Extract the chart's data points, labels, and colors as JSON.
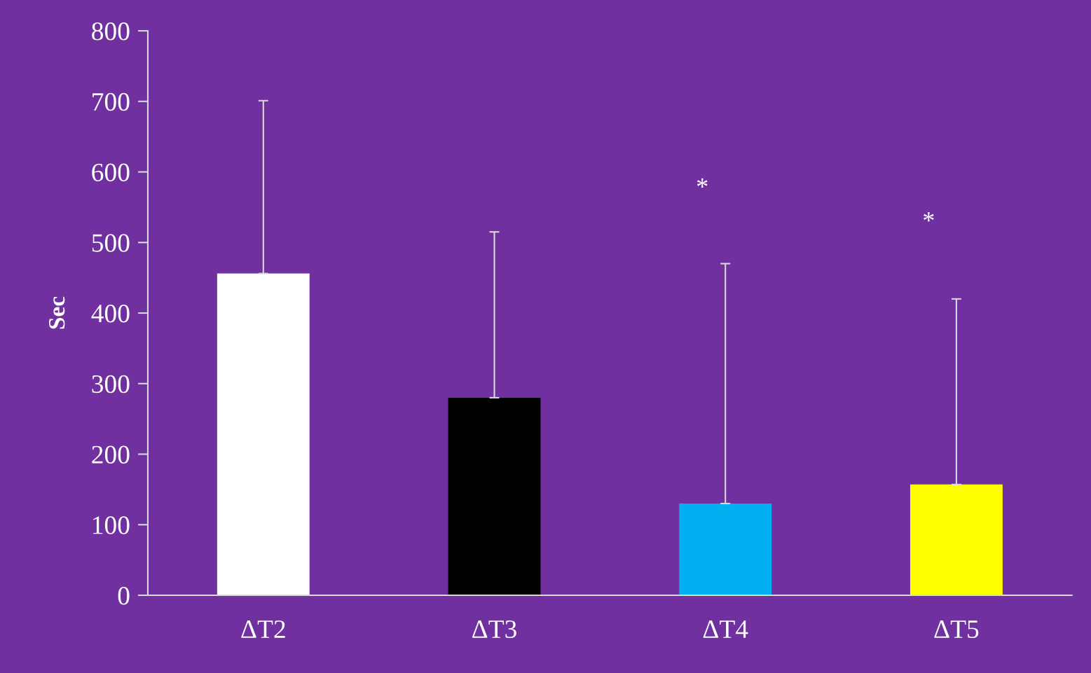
{
  "chart_data": {
    "type": "bar",
    "ylabel": "Sec",
    "categories": [
      "ΔT2",
      "ΔT3",
      "ΔT4",
      "ΔT5"
    ],
    "values": [
      456,
      280,
      130,
      157
    ],
    "colors": [
      "#ffffff",
      "#000000",
      "#00b0f0",
      "#ffff00"
    ],
    "errors": [
      [
        456,
        701
      ],
      [
        280,
        515
      ],
      [
        130,
        470
      ],
      [
        157,
        420
      ]
    ],
    "ylim": [
      0,
      800
    ],
    "yticks": [
      0,
      100,
      200,
      300,
      400,
      500,
      600,
      700,
      800
    ],
    "grid": false,
    "annotations": [
      "*",
      "*"
    ]
  }
}
